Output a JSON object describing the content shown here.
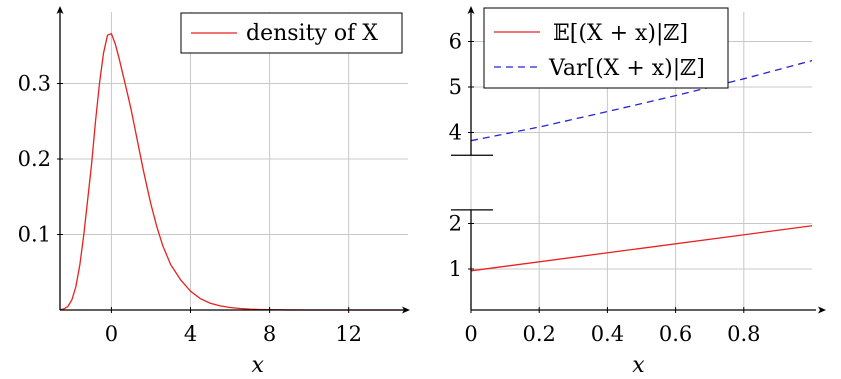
{
  "chart_data": [
    {
      "type": "line",
      "title": "",
      "xlabel": "x",
      "ylabel": "",
      "xlim": [
        -2.6,
        15
      ],
      "ylim": [
        0,
        0.4
      ],
      "xticks": [
        0,
        4,
        8,
        12
      ],
      "xtick_labels": [
        "0",
        "4",
        "8",
        "12"
      ],
      "yticks": [
        0.1,
        0.2,
        0.3
      ],
      "ytick_labels": [
        "0.1",
        "0.2",
        "0.3"
      ],
      "grid": true,
      "legend_position": "top-right",
      "series": [
        {
          "name": "density of X",
          "color": "#e8211f",
          "dash": "solid",
          "x": [
            -2.6,
            -2.4,
            -2.2,
            -2.0,
            -1.8,
            -1.6,
            -1.4,
            -1.2,
            -1.0,
            -0.8,
            -0.6,
            -0.4,
            -0.2,
            0.0,
            0.2,
            0.4,
            0.6,
            0.8,
            1.0,
            1.2,
            1.4,
            1.6,
            1.8,
            2.0,
            2.3,
            2.6,
            3.0,
            3.5,
            4.0,
            4.5,
            5.0,
            5.5,
            6.0,
            6.5,
            7.0,
            7.5,
            8.0,
            9.0,
            10.0,
            11.0,
            12.0,
            13.0,
            14.0,
            15.0
          ],
          "y": [
            0.0003,
            0.0014,
            0.0048,
            0.0134,
            0.0306,
            0.0592,
            0.0991,
            0.1462,
            0.194,
            0.251,
            0.301,
            0.34,
            0.364,
            0.366,
            0.352,
            0.332,
            0.31,
            0.288,
            0.265,
            0.239,
            0.213,
            0.187,
            0.163,
            0.14,
            0.11,
            0.085,
            0.06,
            0.04,
            0.025,
            0.015,
            0.009,
            0.0055,
            0.0033,
            0.002,
            0.0012,
            0.0007,
            0.0004,
            0.0001,
            0.0,
            0.0,
            0.0,
            0.0,
            0.0,
            0.0
          ]
        }
      ]
    },
    {
      "type": "line",
      "title": "",
      "xlabel": "x",
      "ylabel": "",
      "xlim": [
        0,
        1
      ],
      "ylim": [
        0,
        7
      ],
      "y_axis_break": [
        2.3,
        3.5
      ],
      "xticks": [
        0,
        0.2,
        0.4,
        0.6,
        0.8
      ],
      "xtick_labels": [
        "0",
        "0.2",
        "0.4",
        "0.6",
        "0.8"
      ],
      "yticks": [
        1,
        2,
        4,
        5,
        6
      ],
      "ytick_labels": [
        "1",
        "2",
        "4",
        "5",
        "6"
      ],
      "grid": true,
      "legend_position": "top-left",
      "series": [
        {
          "name": "𝔼[(X + x)|ℤ]",
          "color": "#e8211f",
          "dash": "solid",
          "x": [
            0,
            1
          ],
          "y": [
            0.96,
            1.95
          ]
        },
        {
          "name": "Var[(X + x)|ℤ]",
          "color": "#2323d6",
          "dash": "dashed",
          "x": [
            0,
            0.2,
            0.4,
            0.6,
            0.8,
            1.0
          ],
          "y": [
            3.82,
            4.12,
            4.46,
            4.81,
            5.18,
            5.58
          ]
        }
      ]
    }
  ]
}
